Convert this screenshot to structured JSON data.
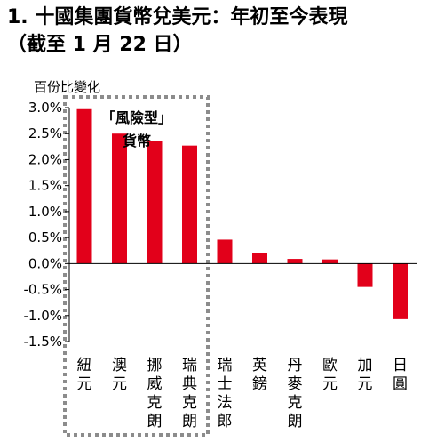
{
  "title_line1": "1. 十國集團貨幣兌美元：年初至今表現",
  "title_line2": "（截至 1 月 22 日）",
  "chart_data": {
    "type": "bar",
    "ylabel": "百份比變化",
    "ylim": [
      -1.5,
      3.0
    ],
    "yticks": [
      3.0,
      2.5,
      2.0,
      1.5,
      1.0,
      0.5,
      0.0,
      -0.5,
      -1.0,
      -1.5
    ],
    "ytick_labels": [
      "3.0%",
      "2.5%",
      "2.0%",
      "1.5%",
      "1.0%",
      "0.5%",
      "0.0%",
      "-0.5%",
      "-1.0%",
      "-1.5%"
    ],
    "categories": [
      "紐元",
      "澳元",
      "挪威克朗",
      "瑞典克朗",
      "瑞士法郎",
      "英鎊",
      "丹麥克朗",
      "歐元",
      "加元",
      "日圓"
    ],
    "values": [
      2.97,
      2.5,
      2.35,
      2.27,
      0.46,
      0.2,
      0.09,
      0.08,
      -0.45,
      -1.07
    ],
    "bar_color": "#e2001a",
    "annotation_line1": "「風險型」",
    "annotation_line2": "貨幣",
    "grid": false
  }
}
